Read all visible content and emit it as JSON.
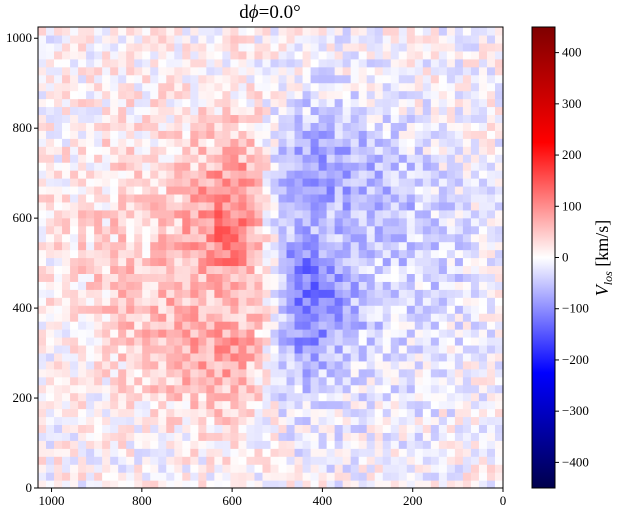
{
  "chart_data": {
    "type": "heatmap",
    "title_prefix": "d",
    "title_symbol": "ϕ",
    "title_value": "=0.0°",
    "x_ticks": [
      "1000",
      "800",
      "600",
      "400",
      "200",
      "0"
    ],
    "x_tick_values": [
      1000,
      800,
      600,
      400,
      200,
      0
    ],
    "xlim": [
      1030,
      0
    ],
    "y_ticks": [
      "0",
      "200",
      "400",
      "600",
      "800",
      "1000"
    ],
    "y_tick_values": [
      0,
      200,
      400,
      600,
      800,
      1000
    ],
    "ylim": [
      0,
      1025
    ],
    "colorbar": {
      "label_main": "V",
      "label_sub": "los",
      "label_unit": " [km/s]",
      "ticks": [
        "400",
        "300",
        "200",
        "100",
        "0",
        "−100",
        "−200",
        "−300",
        "−400"
      ],
      "tick_values": [
        400,
        300,
        200,
        100,
        0,
        -100,
        -200,
        -300,
        -400
      ],
      "range": [
        -450,
        450
      ],
      "colormap": "seismic",
      "colors": [
        "#00004c",
        "#0000ff",
        "#ffffff",
        "#ff0000",
        "#7f0000"
      ]
    },
    "features": {
      "center": [
        515,
        510
      ],
      "receding_side": "left (x > 515)",
      "approaching_side": "right (x < 515)",
      "peak_velocity_kms": 150,
      "description_values": {
        "red_lobe_x_range": [
          515,
          1030
        ],
        "red_lobe_y_range": [
          300,
          820
        ],
        "blue_lobe_x_range": [
          0,
          515
        ],
        "blue_lobe_y_range": [
          100,
          820
        ]
      }
    }
  }
}
